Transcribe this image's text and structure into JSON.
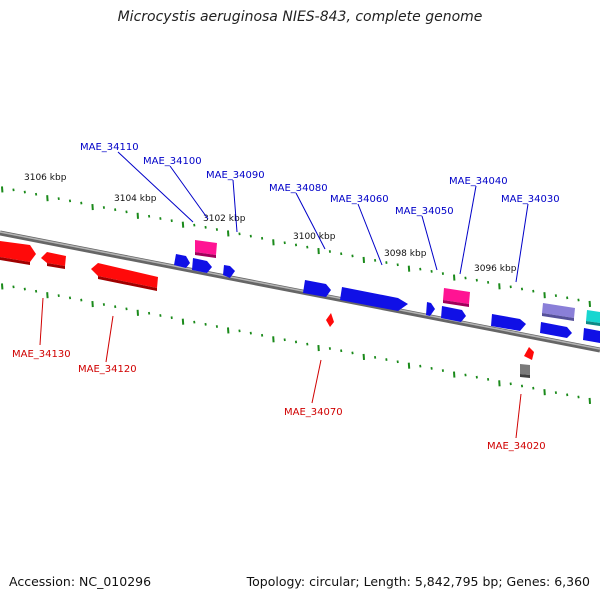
{
  "title": "Microcystis aeruginosa NIES-843, complete genome",
  "footer": {
    "accession": "Accession: NC_010296",
    "topology": "Topology: circular; Length: 5,842,795 bp; Genes: 6,360"
  },
  "colors": {
    "forward_gene": "#1010e6",
    "reverse_gene": "#ff0a0a",
    "pink_gene": "#ff1493",
    "lavender_gene": "#8a7fd8",
    "cyan_gene": "#18d6d0",
    "gray_gene": "#7a7a7a",
    "backbone": "#808080",
    "tick": "#1a8a1a",
    "top_label": "#0000c8",
    "bottom_label": "#d00000"
  },
  "scale_labels": [
    "3106 kbp",
    "3104 kbp",
    "3102 kbp",
    "3100 kbp",
    "3098 kbp",
    "3096 kbp"
  ],
  "top_gene_labels": [
    "MAE_34110",
    "MAE_34100",
    "MAE_34090",
    "MAE_34080",
    "MAE_34060",
    "MAE_34050",
    "MAE_34040",
    "MAE_34030"
  ],
  "bottom_gene_labels": [
    "MAE_34130",
    "MAE_34120",
    "MAE_34070",
    "MAE_34020"
  ]
}
